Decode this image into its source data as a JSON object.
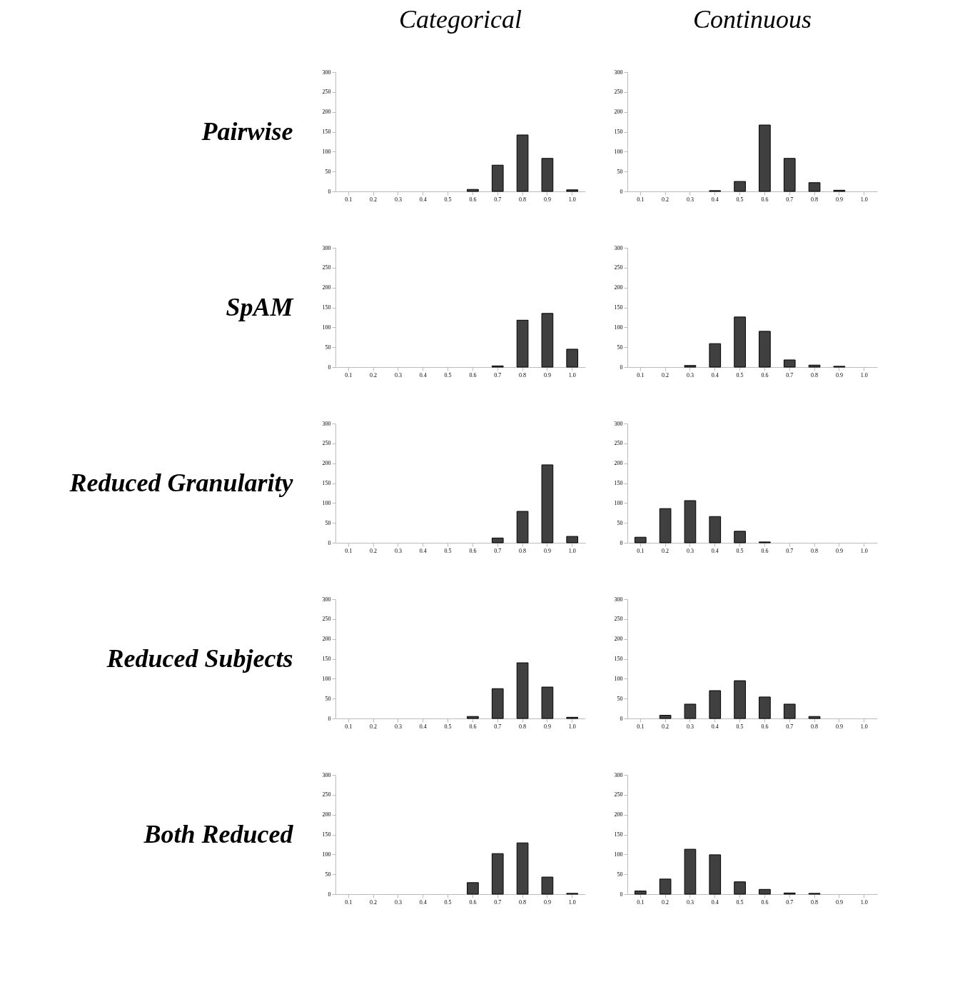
{
  "chart_data": [
    {
      "type": "bar",
      "title": "Categorical",
      "ylabel": "Pairwise",
      "categories": [
        "0.1",
        "0.2",
        "0.3",
        "0.4",
        "0.5",
        "0.6",
        "0.7",
        "0.8",
        "0.9",
        "1.0"
      ],
      "values": [
        0,
        0,
        0,
        0,
        0,
        5,
        66,
        142,
        83,
        4
      ],
      "color": "#404040",
      "ylim": [
        0,
        300
      ],
      "yticks": [
        0,
        50,
        100,
        150,
        200,
        250,
        300
      ]
    },
    {
      "type": "bar",
      "title": "Continuous",
      "categories": [
        "0.1",
        "0.2",
        "0.3",
        "0.4",
        "0.5",
        "0.6",
        "0.7",
        "0.8",
        "0.9",
        "1.0"
      ],
      "values": [
        0,
        0,
        0,
        2,
        25,
        167,
        83,
        22,
        3,
        0
      ],
      "color": "#404040",
      "ylim": [
        0,
        300
      ],
      "yticks": [
        0,
        50,
        100,
        150,
        200,
        250,
        300
      ]
    },
    {
      "type": "bar",
      "ylabel": "SpAM",
      "categories": [
        "0.1",
        "0.2",
        "0.3",
        "0.4",
        "0.5",
        "0.6",
        "0.7",
        "0.8",
        "0.9",
        "1.0"
      ],
      "values": [
        0,
        0,
        0,
        0,
        0,
        0,
        3,
        118,
        135,
        45
      ],
      "color": "#404040",
      "ylim": [
        0,
        300
      ],
      "yticks": [
        0,
        50,
        100,
        150,
        200,
        250,
        300
      ]
    },
    {
      "type": "bar",
      "categories": [
        "0.1",
        "0.2",
        "0.3",
        "0.4",
        "0.5",
        "0.6",
        "0.7",
        "0.8",
        "0.9",
        "1.0"
      ],
      "values": [
        0,
        0,
        4,
        59,
        126,
        90,
        18,
        5,
        2,
        0
      ],
      "color": "#404040",
      "ylim": [
        0,
        300
      ],
      "yticks": [
        0,
        50,
        100,
        150,
        200,
        250,
        300
      ]
    },
    {
      "type": "bar",
      "ylabel": "Reduced Granularity",
      "categories": [
        "0.1",
        "0.2",
        "0.3",
        "0.4",
        "0.5",
        "0.6",
        "0.7",
        "0.8",
        "0.9",
        "1.0"
      ],
      "values": [
        0,
        0,
        0,
        0,
        0,
        0,
        12,
        79,
        196,
        16
      ],
      "color": "#404040",
      "ylim": [
        0,
        300
      ],
      "yticks": [
        0,
        50,
        100,
        150,
        200,
        250,
        300
      ]
    },
    {
      "type": "bar",
      "categories": [
        "0.1",
        "0.2",
        "0.3",
        "0.4",
        "0.5",
        "0.6",
        "0.7",
        "0.8",
        "0.9",
        "1.0"
      ],
      "values": [
        14,
        86,
        106,
        66,
        29,
        2,
        0,
        0,
        0,
        0
      ],
      "color": "#404040",
      "ylim": [
        0,
        300
      ],
      "yticks": [
        0,
        50,
        100,
        150,
        200,
        250,
        300
      ]
    },
    {
      "type": "bar",
      "ylabel": "Reduced Subjects",
      "categories": [
        "0.1",
        "0.2",
        "0.3",
        "0.4",
        "0.5",
        "0.6",
        "0.7",
        "0.8",
        "0.9",
        "1.0"
      ],
      "values": [
        0,
        0,
        0,
        0,
        0,
        5,
        75,
        140,
        79,
        3
      ],
      "color": "#404040",
      "ylim": [
        0,
        300
      ],
      "yticks": [
        0,
        50,
        100,
        150,
        200,
        250,
        300
      ]
    },
    {
      "type": "bar",
      "categories": [
        "0.1",
        "0.2",
        "0.3",
        "0.4",
        "0.5",
        "0.6",
        "0.7",
        "0.8",
        "0.9",
        "1.0"
      ],
      "values": [
        0,
        8,
        36,
        70,
        95,
        54,
        36,
        5,
        0,
        0
      ],
      "color": "#404040",
      "ylim": [
        0,
        300
      ],
      "yticks": [
        0,
        50,
        100,
        150,
        200,
        250,
        300
      ]
    },
    {
      "type": "bar",
      "ylabel": "Both Reduced",
      "categories": [
        "0.1",
        "0.2",
        "0.3",
        "0.4",
        "0.5",
        "0.6",
        "0.7",
        "0.8",
        "0.9",
        "1.0"
      ],
      "values": [
        0,
        0,
        0,
        0,
        0,
        29,
        102,
        129,
        43,
        2
      ],
      "color": "#404040",
      "ylim": [
        0,
        300
      ],
      "yticks": [
        0,
        50,
        100,
        150,
        200,
        250,
        300
      ]
    },
    {
      "type": "bar",
      "categories": [
        "0.1",
        "0.2",
        "0.3",
        "0.4",
        "0.5",
        "0.6",
        "0.7",
        "0.8",
        "0.9",
        "1.0"
      ],
      "values": [
        8,
        38,
        113,
        99,
        31,
        12,
        3,
        2,
        0,
        0
      ],
      "color": "#404040",
      "ylim": [
        0,
        300
      ],
      "yticks": [
        0,
        50,
        100,
        150,
        200,
        250,
        300
      ]
    }
  ]
}
